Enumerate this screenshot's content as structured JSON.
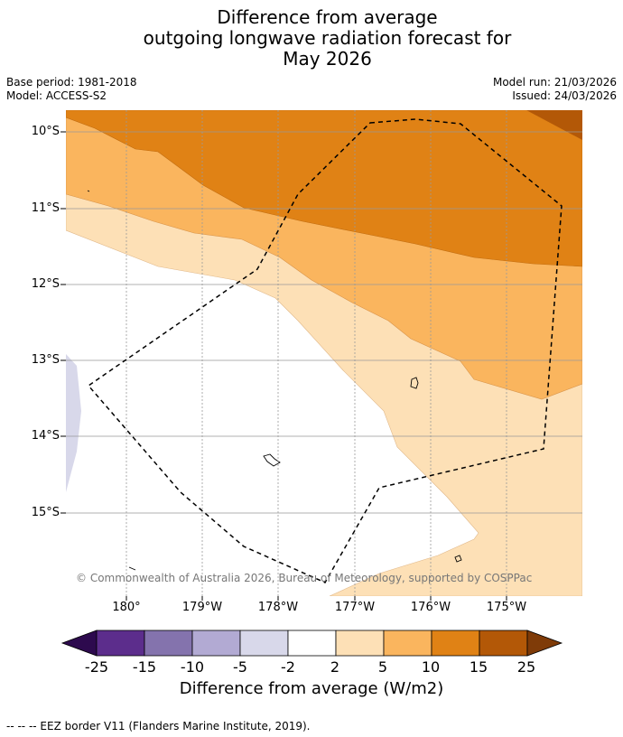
{
  "title": {
    "line1": "Difference from average",
    "line2": "outgoing longwave radiation forecast for",
    "line3": "May 2026"
  },
  "meta": {
    "base_period": "Base period: 1981-2018",
    "model": "Model: ACCESS-S2",
    "model_run": "Model run: 21/03/2026",
    "issued": "Issued: 24/03/2026"
  },
  "map": {
    "lat_labels": [
      "10°S",
      "11°S",
      "12°S",
      "13°S",
      "14°S",
      "15°S"
    ],
    "lon_labels": [
      "180°",
      "179°W",
      "178°W",
      "177°W",
      "176°W",
      "175°W"
    ],
    "copyright": "© Commonwealth of Australia 2026, Bureau of Meteorology, supported by COSPPac"
  },
  "colorbar": {
    "ticks": [
      "-25",
      "-15",
      "-10",
      "-5",
      "-2",
      "2",
      "5",
      "10",
      "15",
      "25"
    ],
    "colors": [
      "#2d0a4e",
      "#5c2d8c",
      "#8473ad",
      "#b2aad3",
      "#d8d8ea",
      "#ffffff",
      "#fde0b6",
      "#fab55e",
      "#e08215",
      "#b35807",
      "#7f3b08"
    ],
    "label": "Difference from average (W/m2)"
  },
  "footer": {
    "legend": "--  --  -- EEZ border V11 (Flanders Marine Institute, 2019)."
  }
}
